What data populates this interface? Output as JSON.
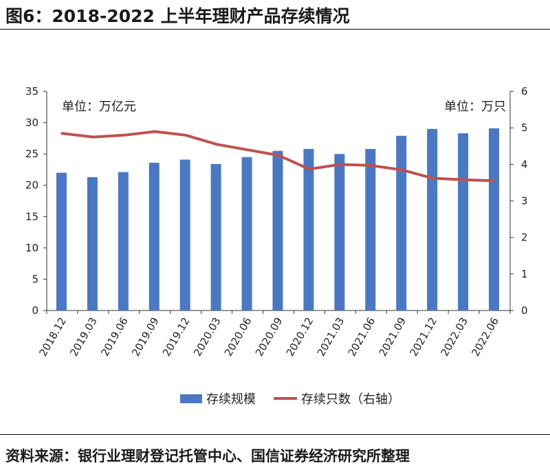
{
  "figure": {
    "title": "图6：2018-2022 上半年理财产品存续情况",
    "source": "资料来源：银行业理财登记托管中心、国信证券经济研究所整理"
  },
  "chart_data": {
    "type": "bar",
    "categories": [
      "2018.12",
      "2019.03",
      "2019.06",
      "2019.09",
      "2019.12",
      "2020.03",
      "2020.06",
      "2020.09",
      "2020.12",
      "2021.03",
      "2021.06",
      "2021.09",
      "2021.12",
      "2022.03",
      "2022.06"
    ],
    "series": [
      {
        "name": "存续规模",
        "type": "bar",
        "axis": "left",
        "color": "#4a78c2",
        "values": [
          22.0,
          21.3,
          22.1,
          23.6,
          24.1,
          23.4,
          24.5,
          25.5,
          25.8,
          25.0,
          25.8,
          27.9,
          29.0,
          28.3,
          29.1
        ]
      },
      {
        "name": "存续只数（右轴）",
        "type": "line",
        "axis": "right",
        "color": "#c0504d",
        "values": [
          4.85,
          4.75,
          4.8,
          4.9,
          4.8,
          4.55,
          4.4,
          4.25,
          3.87,
          4.0,
          3.97,
          3.85,
          3.62,
          3.58,
          3.55
        ]
      }
    ],
    "y_left": {
      "min": 0,
      "max": 35,
      "ticks": [
        0,
        5,
        10,
        15,
        20,
        25,
        30,
        35
      ],
      "unit": "单位：万亿元"
    },
    "y_right": {
      "min": 0,
      "max": 6,
      "ticks": [
        0,
        1,
        2,
        3,
        4,
        5,
        6
      ],
      "unit": "单位：万只"
    },
    "legend_position": "bottom",
    "grid": false
  }
}
